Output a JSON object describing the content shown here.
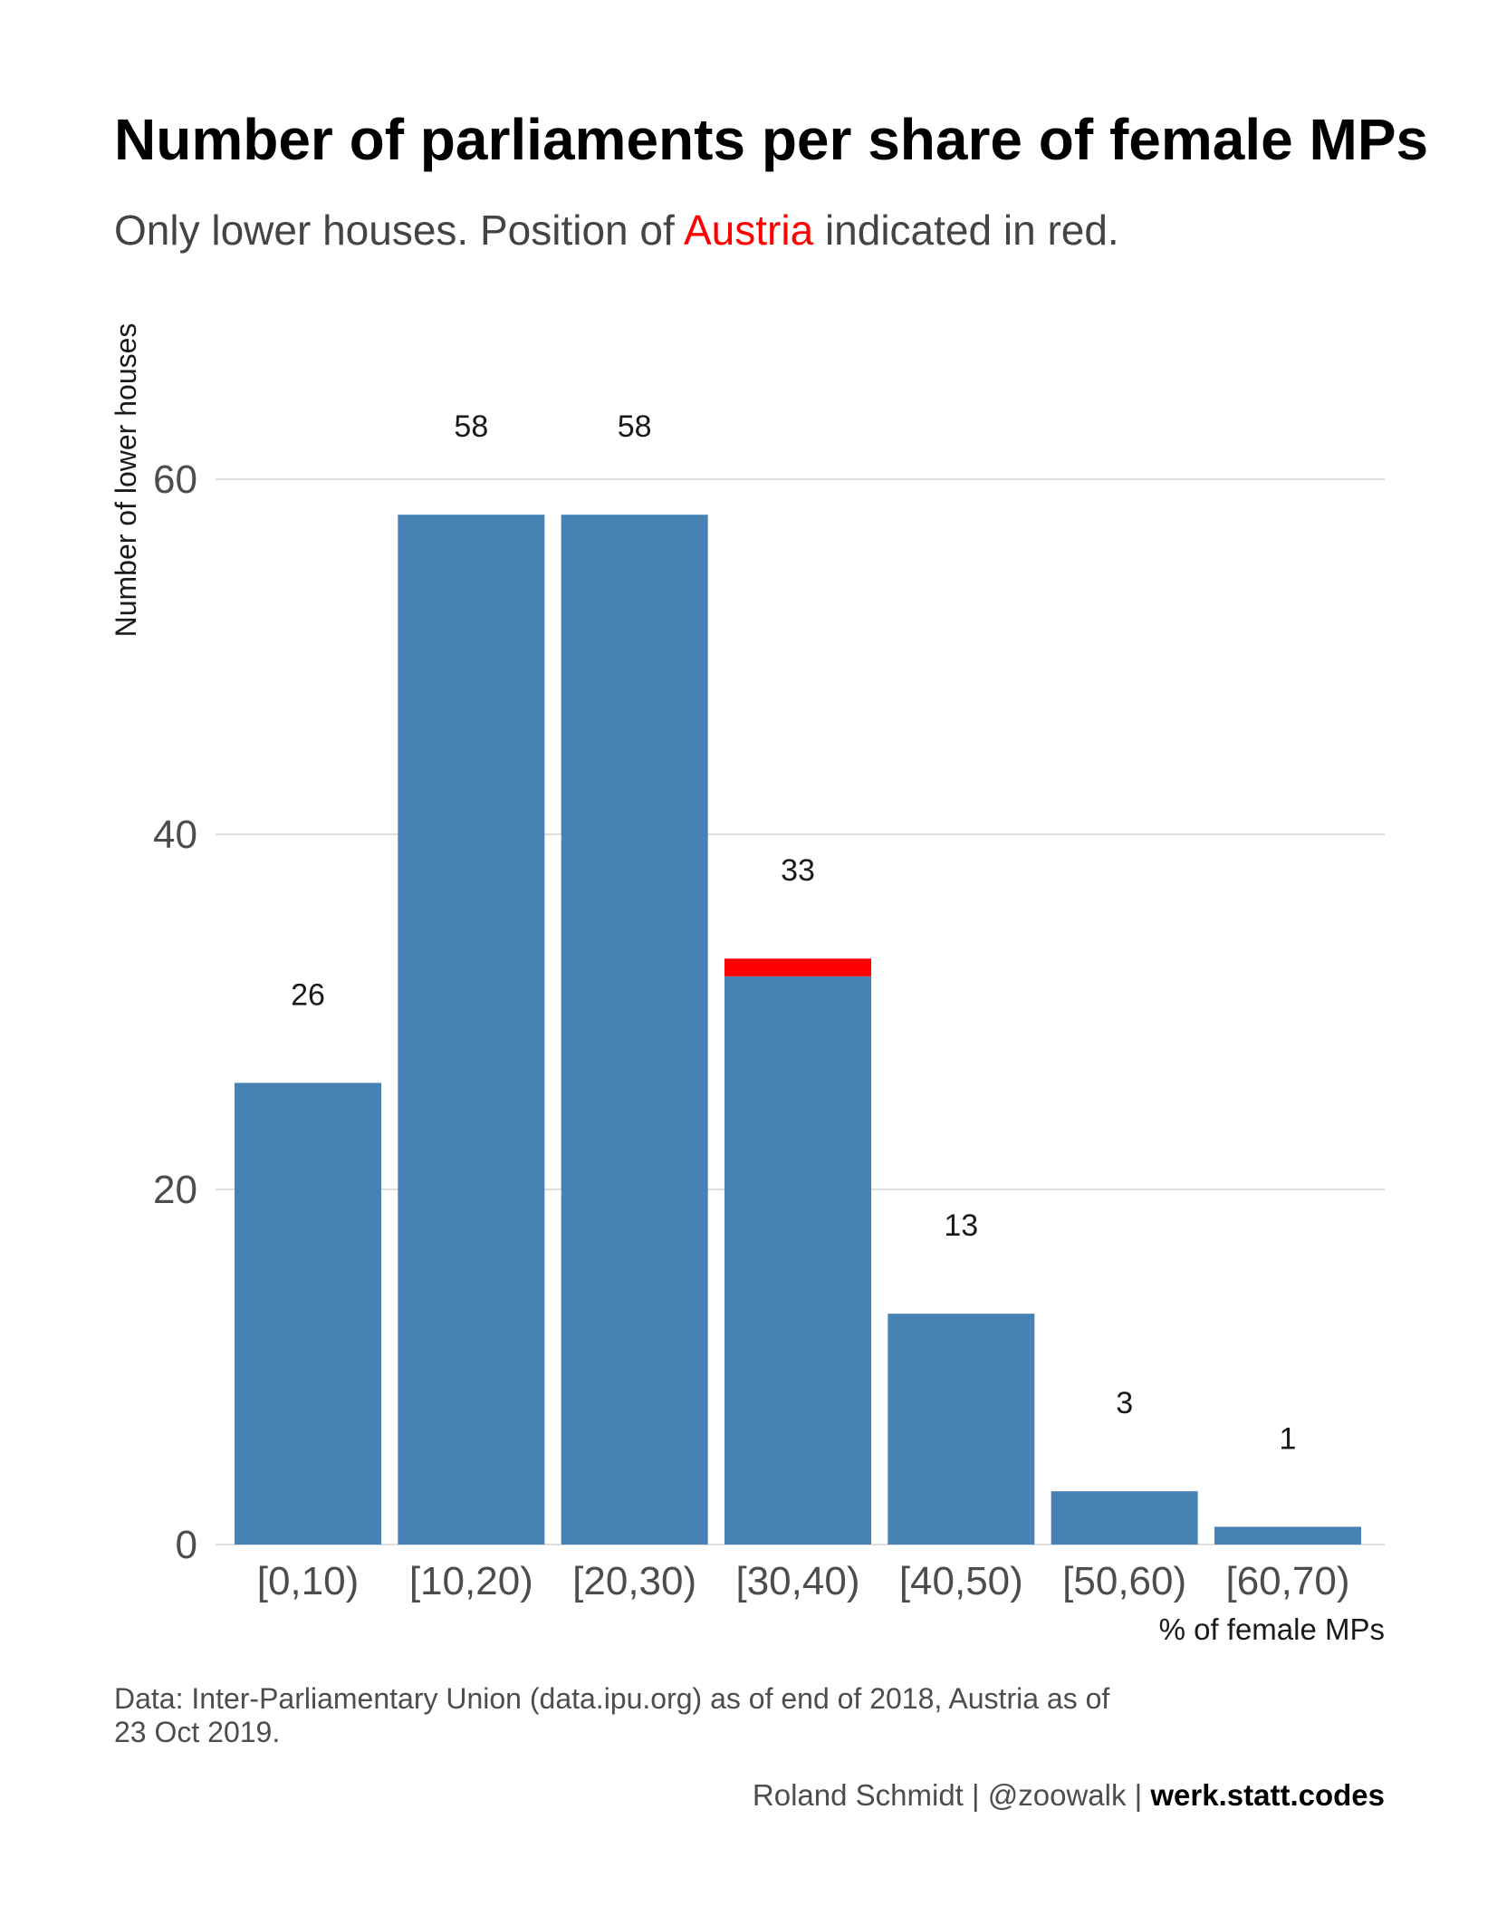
{
  "chart_data": {
    "type": "bar",
    "title": "Number of parliaments per share of female MPs",
    "subtitle": {
      "before": "Only lower houses. Position of ",
      "highlight": "Austria",
      "after": " indicated in red."
    },
    "xlabel": "% of female MPs",
    "ylabel": "Number of lower houses",
    "categories": [
      "[0,10)",
      "[10,20)",
      "[20,30)",
      "[30,40)",
      "[40,50)",
      "[50,60)",
      "[60,70)"
    ],
    "values": [
      26,
      58,
      58,
      33,
      13,
      3,
      1
    ],
    "value_labels": [
      "26",
      "58",
      "58",
      "33",
      "13",
      "3",
      "1"
    ],
    "highlight": {
      "name": "Austria",
      "category": "[30,40)",
      "count": 1
    },
    "y_ticks": [
      0,
      20,
      40,
      60
    ],
    "y_tick_labels": [
      "0",
      "20",
      "40",
      "60"
    ],
    "ylim": [
      0,
      60
    ],
    "grid": "horizontal major",
    "legend": "none",
    "caption": {
      "line1": "Data: Inter-Parliamentary Union (data.ipu.org) as of end of 2018, Austria as of",
      "line2": "23 Oct 2019."
    },
    "credit": {
      "author": "Roland Schmidt | @zoowalk | ",
      "site": "werk.statt.codes"
    },
    "colors": {
      "bar": "#4682b4",
      "highlight": "#ff0000",
      "grid": "#d3d3d3",
      "title": "#000000",
      "subtitle": "#444444",
      "axis_text": "#4d4d4d",
      "label": "#1a1a1a"
    }
  }
}
